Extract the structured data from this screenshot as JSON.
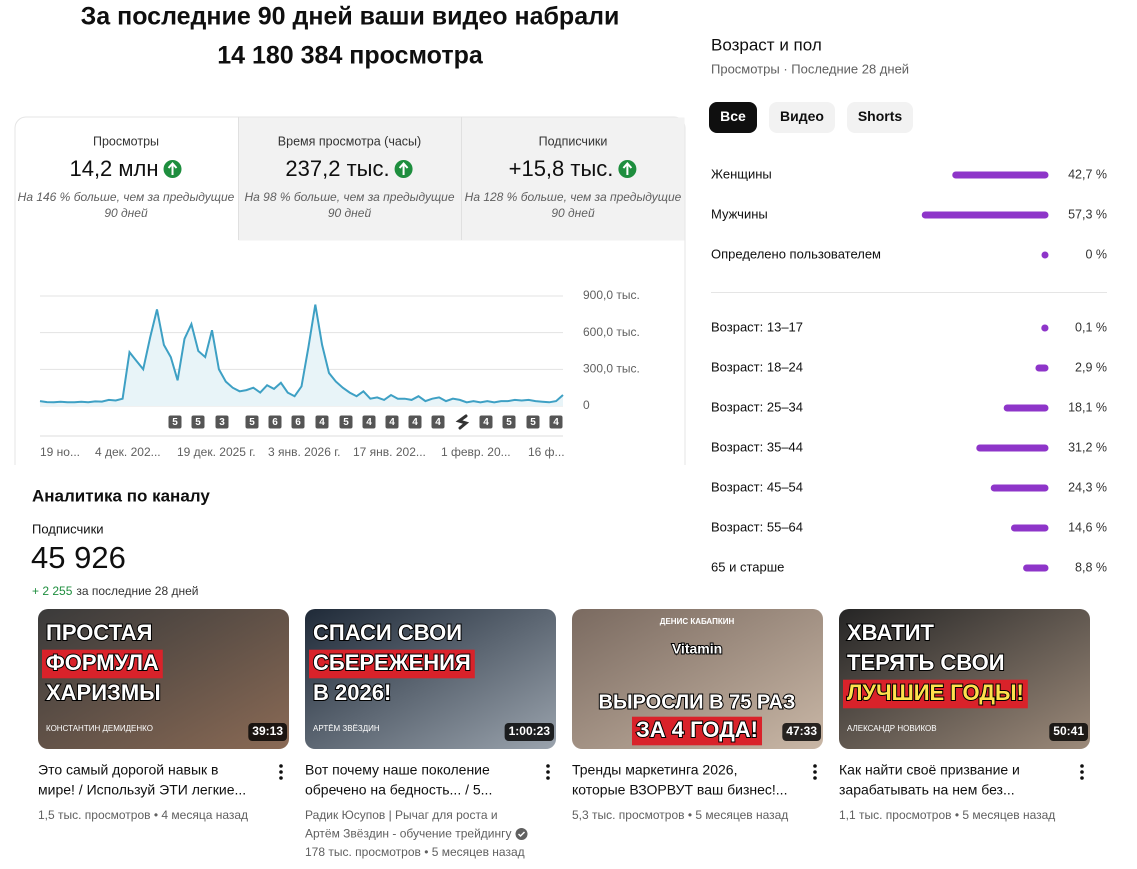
{
  "header": {
    "title_lines": [
      "За последние 90 дней ваши видео набрали",
      "14 180 384 просмотра"
    ]
  },
  "metrics": [
    {
      "label": "Просмотры",
      "value": "14,2 млн",
      "note_lines": [
        "На 146 % больше, чем за предыдущие",
        "90 дней"
      ]
    },
    {
      "label": "Время просмотра (часы)",
      "value": "237,2 тыс.",
      "note_lines": [
        "На 98 % больше, чем за предыдущие",
        "90 дней"
      ]
    },
    {
      "label": "Подписчики",
      "value": "+15,8 тыс.",
      "note_lines": [
        "На 128 % больше, чем за предыдущие",
        "90 дней"
      ]
    }
  ],
  "chart_data": {
    "type": "line",
    "color": "#3ea0c4",
    "values": [
      40000,
      32000,
      30000,
      34000,
      30000,
      31000,
      35000,
      30000,
      38000,
      36000,
      50000,
      45000,
      60000,
      440000,
      370000,
      300000,
      560000,
      790000,
      500000,
      400000,
      210000,
      550000,
      670000,
      450000,
      400000,
      620000,
      300000,
      200000,
      150000,
      120000,
      130000,
      150000,
      110000,
      170000,
      140000,
      190000,
      110000,
      80000,
      160000,
      480000,
      830000,
      500000,
      270000,
      200000,
      150000,
      110000,
      80000,
      120000,
      60000,
      70000,
      50000,
      90000,
      60000,
      60000,
      50000,
      80000,
      40000,
      60000,
      70000,
      40000,
      60000,
      50000,
      30000,
      40000,
      30000,
      40000,
      30000,
      40000,
      40000,
      50000,
      45000,
      50000,
      40000,
      35000,
      30000,
      40000,
      90000
    ],
    "ylim": [
      0,
      900000
    ],
    "yticks": [
      0,
      {
        "value": 300000,
        "label": "300,0 тыс."
      },
      {
        "value": 600000,
        "label": "600,0 тыс."
      },
      {
        "value": 900000,
        "label": "900,0 тыс."
      }
    ],
    "grid": true,
    "x_labels": [
      "19 но...",
      "4 дек. 202...",
      "19 дек. 2025 г.",
      "3 янв. 2026 г.",
      "17 янв. 202...",
      "1 февр. 20...",
      "16 ф..."
    ],
    "markers": [
      5,
      5,
      3,
      5,
      6,
      6,
      4,
      5,
      4,
      4,
      4,
      4,
      null,
      4,
      5,
      5,
      4
    ]
  },
  "channel": {
    "title": "Аналитика по каналу",
    "subscribers_label": "Подписчики",
    "subscribers": "45 926",
    "delta": "+ 2 255",
    "delta_note": "за последние 28 дней"
  },
  "demographics": {
    "title": "Возраст и пол",
    "subtitle": "Просмотры · Последние 28 дней",
    "tabs": [
      "Все",
      "Видео",
      "Shorts"
    ],
    "color": "#8e35c9",
    "gender": {
      "labels": [
        "Женщины",
        "Мужчины",
        "Определено пользователем"
      ],
      "values": [
        42.7,
        57.3,
        0
      ],
      "value_labels": [
        "42,7 %",
        "57,3 %",
        "0 %"
      ]
    },
    "age": {
      "labels": [
        "Возраст: 13–17",
        "Возраст: 18–24",
        "Возраст: 25–34",
        "Возраст: 35–44",
        "Возраст: 45–54",
        "Возраст: 55–64",
        "65 и старше"
      ],
      "values": [
        0.1,
        2.9,
        18.1,
        31.2,
        24.3,
        14.6,
        8.8
      ],
      "value_labels": [
        "0,1 %",
        "2,9 %",
        "18,1 %",
        "31,2 %",
        "24,3 %",
        "14,6 %",
        "8,8 %"
      ]
    }
  },
  "videos": [
    {
      "thumb_lines": [
        {
          "text": "ПРОСТАЯ"
        },
        {
          "text": "ФОРМУЛА",
          "bg": "#d9222a"
        },
        {
          "text": "ХАРИЗМЫ"
        }
      ],
      "thumb_caption": "КОНСТАНТИН ДЕМИДЕНКО",
      "duration": "39:13",
      "title_lines": [
        "Это самый дорогой навык в",
        "мире! / Используй ЭТИ легкие..."
      ],
      "meta_lines": [
        "1,5 тыс. просмотров • 4 месяца назад"
      ]
    },
    {
      "thumb_lines": [
        {
          "text": "СПАСИ СВОИ"
        },
        {
          "text": "СБЕРЕЖЕНИЯ",
          "bg": "#d9222a"
        },
        {
          "text": "В 2026!"
        }
      ],
      "thumb_caption": "АРТЁМ ЗВЁЗДИН",
      "duration": "1:00:23",
      "title_lines": [
        "Вот почему наше поколение",
        "обречено на бедность... / 5..."
      ],
      "meta_lines": [
        "Радик Юсупов | Рычаг для роста и",
        "Артём Звёздин - обучение трейдингу",
        "178 тыс. просмотров • 5 месяцев назад"
      ]
    },
    {
      "thumb_lines": [
        {
          "text": "ДЕНИС КАБАПКИН"
        },
        {
          "text": "Vitamin"
        },
        {
          "text": "ВЫРОСЛИ В 75 РАЗ"
        },
        {
          "text": "ЗА 4 ГОДА!",
          "bg": "#d9222a"
        }
      ],
      "thumb_caption": null,
      "duration": "47:33",
      "title_lines": [
        "Тренды маркетинга 2026,",
        "которые ВЗОРВУТ ваш бизнес!..."
      ],
      "meta_lines": [
        "5,3 тыс. просмотров • 5 месяцев назад"
      ]
    },
    {
      "thumb_lines": [
        {
          "text": "ХВАТИТ"
        },
        {
          "text": "ТЕРЯТЬ СВОИ"
        },
        {
          "text": "ЛУЧШИЕ ГОДЫ!",
          "bg": "#d9222a",
          "color": "#ffe14d"
        }
      ],
      "thumb_caption": "АЛЕКСАНДР НОВИКОВ",
      "duration": "50:41",
      "title_lines": [
        "Как найти своё призвание и",
        "зарабатывать на нем без..."
      ],
      "meta_lines": [
        "1,1 тыс. просмотров • 5 месяцев назад"
      ]
    }
  ]
}
